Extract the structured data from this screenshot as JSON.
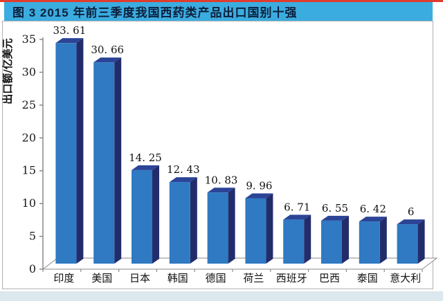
{
  "header": {
    "text": "图 3  2015 年前三季度我国西药类产品出口国别十强",
    "bg": "#3bacdf",
    "text_color": "#0d1f3c",
    "accent_line_color": "#e03c2d"
  },
  "frame": {
    "border_color": "#b0b0b0",
    "bg": "#ffffff"
  },
  "footer": {
    "strip_color": "#dde7ee"
  },
  "chart_data": {
    "type": "bar",
    "title": "2015 年前三季度我国西药类产品出口国别十强",
    "categories": [
      "印度",
      "美国",
      "日本",
      "韩国",
      "德国",
      "荷兰",
      "西班牙",
      "巴西",
      "泰国",
      "意大利"
    ],
    "values": [
      33.61,
      30.66,
      14.25,
      12.43,
      10.83,
      9.96,
      6.71,
      6.55,
      6.42,
      6
    ],
    "value_labels": [
      "33. 61",
      "30. 66",
      "14. 25",
      "12. 43",
      "10. 83",
      "9. 96",
      "6. 71",
      "6. 55",
      "6. 42",
      "6"
    ],
    "xlabel": "",
    "ylabel": "出口额/亿美元",
    "ylim": [
      0,
      35
    ],
    "ytick_step": 5,
    "grid": false,
    "legend": false,
    "style": {
      "three_d": true,
      "bar_front": "#2f7ac2",
      "bar_side": "#232c6b",
      "bar_top": "#2c4496",
      "axis_color": "#8a8a8a",
      "label_color": "#111111"
    }
  }
}
